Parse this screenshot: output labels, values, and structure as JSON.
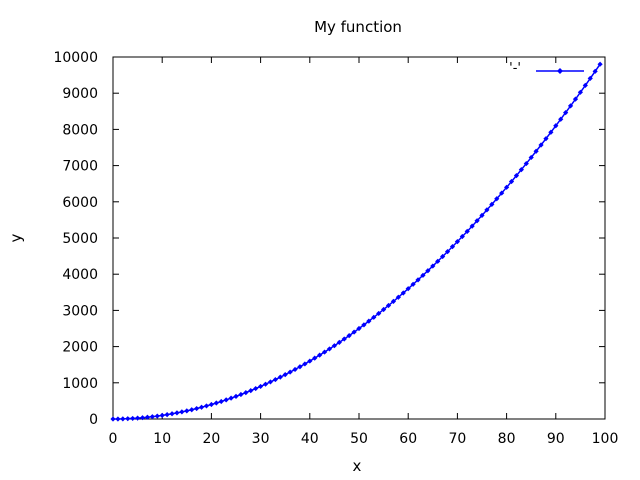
{
  "chart_data": {
    "type": "line",
    "title": "My function",
    "xlabel": "x",
    "ylabel": "y",
    "xlim": [
      0,
      100
    ],
    "ylim": [
      0,
      10000
    ],
    "xticks": [
      0,
      10,
      20,
      30,
      40,
      50,
      60,
      70,
      80,
      90,
      100
    ],
    "yticks": [
      0,
      1000,
      2000,
      3000,
      4000,
      5000,
      6000,
      7000,
      8000,
      9000,
      10000
    ],
    "grid": false,
    "legend_position": "top-right",
    "series": [
      {
        "name": "'-'",
        "color": "#0000ff",
        "marker": "diamond",
        "x": [
          0,
          1,
          2,
          3,
          4,
          5,
          6,
          7,
          8,
          9,
          10,
          11,
          12,
          13,
          14,
          15,
          16,
          17,
          18,
          19,
          20,
          21,
          22,
          23,
          24,
          25,
          26,
          27,
          28,
          29,
          30,
          31,
          32,
          33,
          34,
          35,
          36,
          37,
          38,
          39,
          40,
          41,
          42,
          43,
          44,
          45,
          46,
          47,
          48,
          49,
          50,
          51,
          52,
          53,
          54,
          55,
          56,
          57,
          58,
          59,
          60,
          61,
          62,
          63,
          64,
          65,
          66,
          67,
          68,
          69,
          70,
          71,
          72,
          73,
          74,
          75,
          76,
          77,
          78,
          79,
          80,
          81,
          82,
          83,
          84,
          85,
          86,
          87,
          88,
          89,
          90,
          91,
          92,
          93,
          94,
          95,
          96,
          97,
          98,
          99
        ],
        "y": [
          0,
          1,
          4,
          9,
          16,
          25,
          36,
          49,
          64,
          81,
          100,
          121,
          144,
          169,
          196,
          225,
          256,
          289,
          324,
          361,
          400,
          441,
          484,
          529,
          576,
          625,
          676,
          729,
          784,
          841,
          900,
          961,
          1024,
          1089,
          1156,
          1225,
          1296,
          1369,
          1444,
          1521,
          1600,
          1681,
          1764,
          1849,
          1936,
          2025,
          2116,
          2209,
          2304,
          2401,
          2500,
          2601,
          2704,
          2809,
          2916,
          3025,
          3136,
          3249,
          3364,
          3481,
          3600,
          3721,
          3844,
          3969,
          4096,
          4225,
          4356,
          4489,
          4624,
          4761,
          4900,
          5041,
          5184,
          5329,
          5476,
          5625,
          5776,
          5929,
          6084,
          6241,
          6400,
          6561,
          6724,
          6889,
          7056,
          7225,
          7396,
          7569,
          7744,
          7921,
          8100,
          8281,
          8464,
          8649,
          8836,
          9025,
          9216,
          9409,
          9604,
          9801
        ]
      }
    ]
  }
}
